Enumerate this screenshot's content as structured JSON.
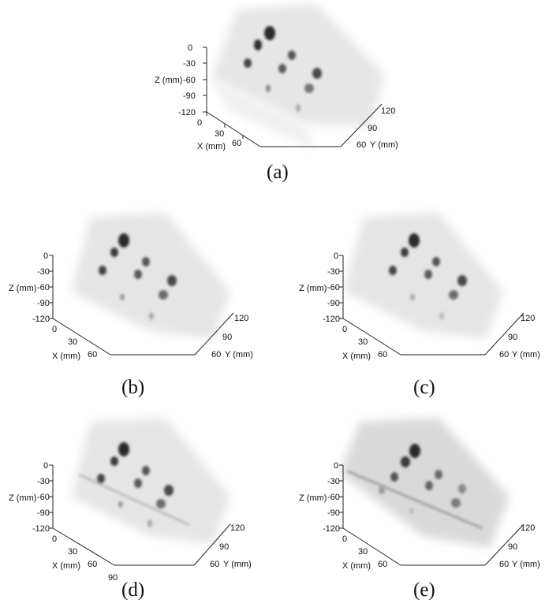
{
  "figure": {
    "panels": [
      {
        "id": "a",
        "caption": "(a)",
        "z_axis_label": "Z (mm)",
        "z_ticks": [
          "0",
          "-30",
          "-60",
          "-90",
          "-120"
        ],
        "x_axis_label": "X (mm)",
        "x_ticks": [
          "0",
          "30",
          "60"
        ],
        "y_axis_label": "Y (mm)",
        "y_ticks": [
          "120",
          "90",
          "60"
        ]
      },
      {
        "id": "b",
        "caption": "(b)",
        "z_axis_label": "Z (mm)",
        "z_ticks": [
          "0",
          "-30",
          "-60",
          "-90",
          "-120"
        ],
        "x_axis_label": "X (mm)",
        "x_ticks": [
          "0",
          "30",
          "60"
        ],
        "y_axis_label": "Y (mm)",
        "y_ticks": [
          "120",
          "90",
          "60"
        ]
      },
      {
        "id": "c",
        "caption": "(c)",
        "z_axis_label": "Z (mm)",
        "z_ticks": [
          "0",
          "-30",
          "-60",
          "-90",
          "-120"
        ],
        "x_axis_label": "X (mm)",
        "x_ticks": [
          "0",
          "30",
          "60"
        ],
        "y_axis_label": "Y (mm)",
        "y_ticks": [
          "120",
          "90",
          "60"
        ]
      },
      {
        "id": "d",
        "caption": "(d)",
        "z_axis_label": "Z (mm)",
        "z_ticks": [
          "0",
          "-30",
          "-60",
          "-90",
          "-120"
        ],
        "x_axis_label": "X (mm)",
        "x_ticks": [
          "0",
          "30",
          "60",
          "90"
        ],
        "y_axis_label": "Y (mm)",
        "y_ticks": [
          "120",
          "90",
          "60"
        ]
      },
      {
        "id": "e",
        "caption": "(e)",
        "z_axis_label": "Z (mm)",
        "z_ticks": [
          "0",
          "-30",
          "-60",
          "-90",
          "-120"
        ],
        "x_axis_label": "X (mm)",
        "x_ticks": [
          "0",
          "30",
          "60"
        ],
        "y_axis_label": "Y (mm)",
        "y_ticks": [
          "120",
          "90",
          "60"
        ]
      }
    ]
  }
}
